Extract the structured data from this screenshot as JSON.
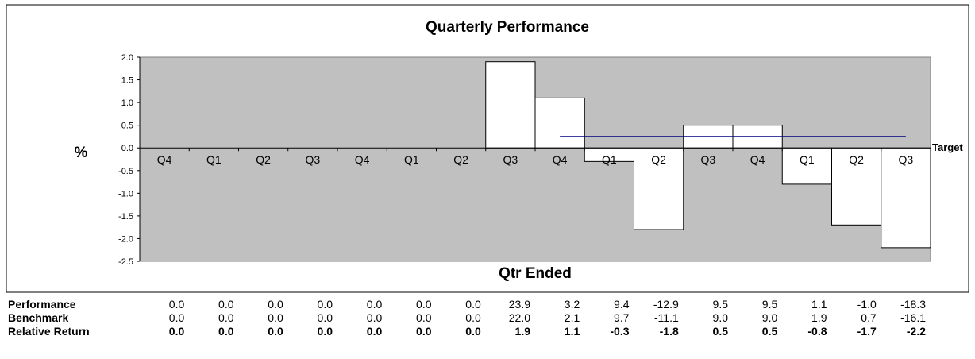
{
  "chart_data": {
    "type": "bar",
    "title": "Quarterly Performance",
    "xlabel": "Qtr Ended",
    "ylabel": "%",
    "ylim": [
      -2.5,
      2.0
    ],
    "yticks": [
      2.0,
      1.5,
      1.0,
      0.5,
      0.0,
      -0.5,
      -1.0,
      -1.5,
      -2.0,
      -2.5
    ],
    "grid": false,
    "categories": [
      "Q4",
      "Q1",
      "Q2",
      "Q3",
      "Q4",
      "Q1",
      "Q2",
      "Q3",
      "Q4",
      "Q1",
      "Q2",
      "Q3",
      "Q4",
      "Q1",
      "Q2",
      "Q3"
    ],
    "series": [
      {
        "values": [
          0.0,
          0.0,
          0.0,
          0.0,
          0.0,
          0.0,
          0.0,
          1.9,
          1.1,
          -0.3,
          -1.8,
          0.5,
          0.5,
          -0.8,
          -1.7,
          -2.2
        ]
      }
    ],
    "target": {
      "label": "Target",
      "value": 0.25,
      "start_index": 8,
      "end_index": 15
    },
    "colors": {
      "plot_background": "#c0c0c0",
      "bar_fill": "#ffffff",
      "bar_stroke": "#000000",
      "target_line": "#00007f"
    }
  },
  "table": {
    "rows": [
      {
        "label": "Performance",
        "bold": false,
        "values": [
          "0.0",
          "0.0",
          "0.0",
          "0.0",
          "0.0",
          "0.0",
          "0.0",
          "23.9",
          "3.2",
          "9.4",
          "-12.9",
          "9.5",
          "9.5",
          "1.1",
          "-1.0",
          "-18.3"
        ]
      },
      {
        "label": "Benchmark",
        "bold": false,
        "values": [
          "0.0",
          "0.0",
          "0.0",
          "0.0",
          "0.0",
          "0.0",
          "0.0",
          "22.0",
          "2.1",
          "9.7",
          "-11.1",
          "9.0",
          "9.0",
          "1.9",
          "0.7",
          "-16.1"
        ]
      },
      {
        "label": "Relative Return",
        "bold": true,
        "values": [
          "0.0",
          "0.0",
          "0.0",
          "0.0",
          "0.0",
          "0.0",
          "0.0",
          "1.9",
          "1.1",
          "-0.3",
          "-1.8",
          "0.5",
          "0.5",
          "-0.8",
          "-1.7",
          "-2.2"
        ]
      }
    ]
  }
}
